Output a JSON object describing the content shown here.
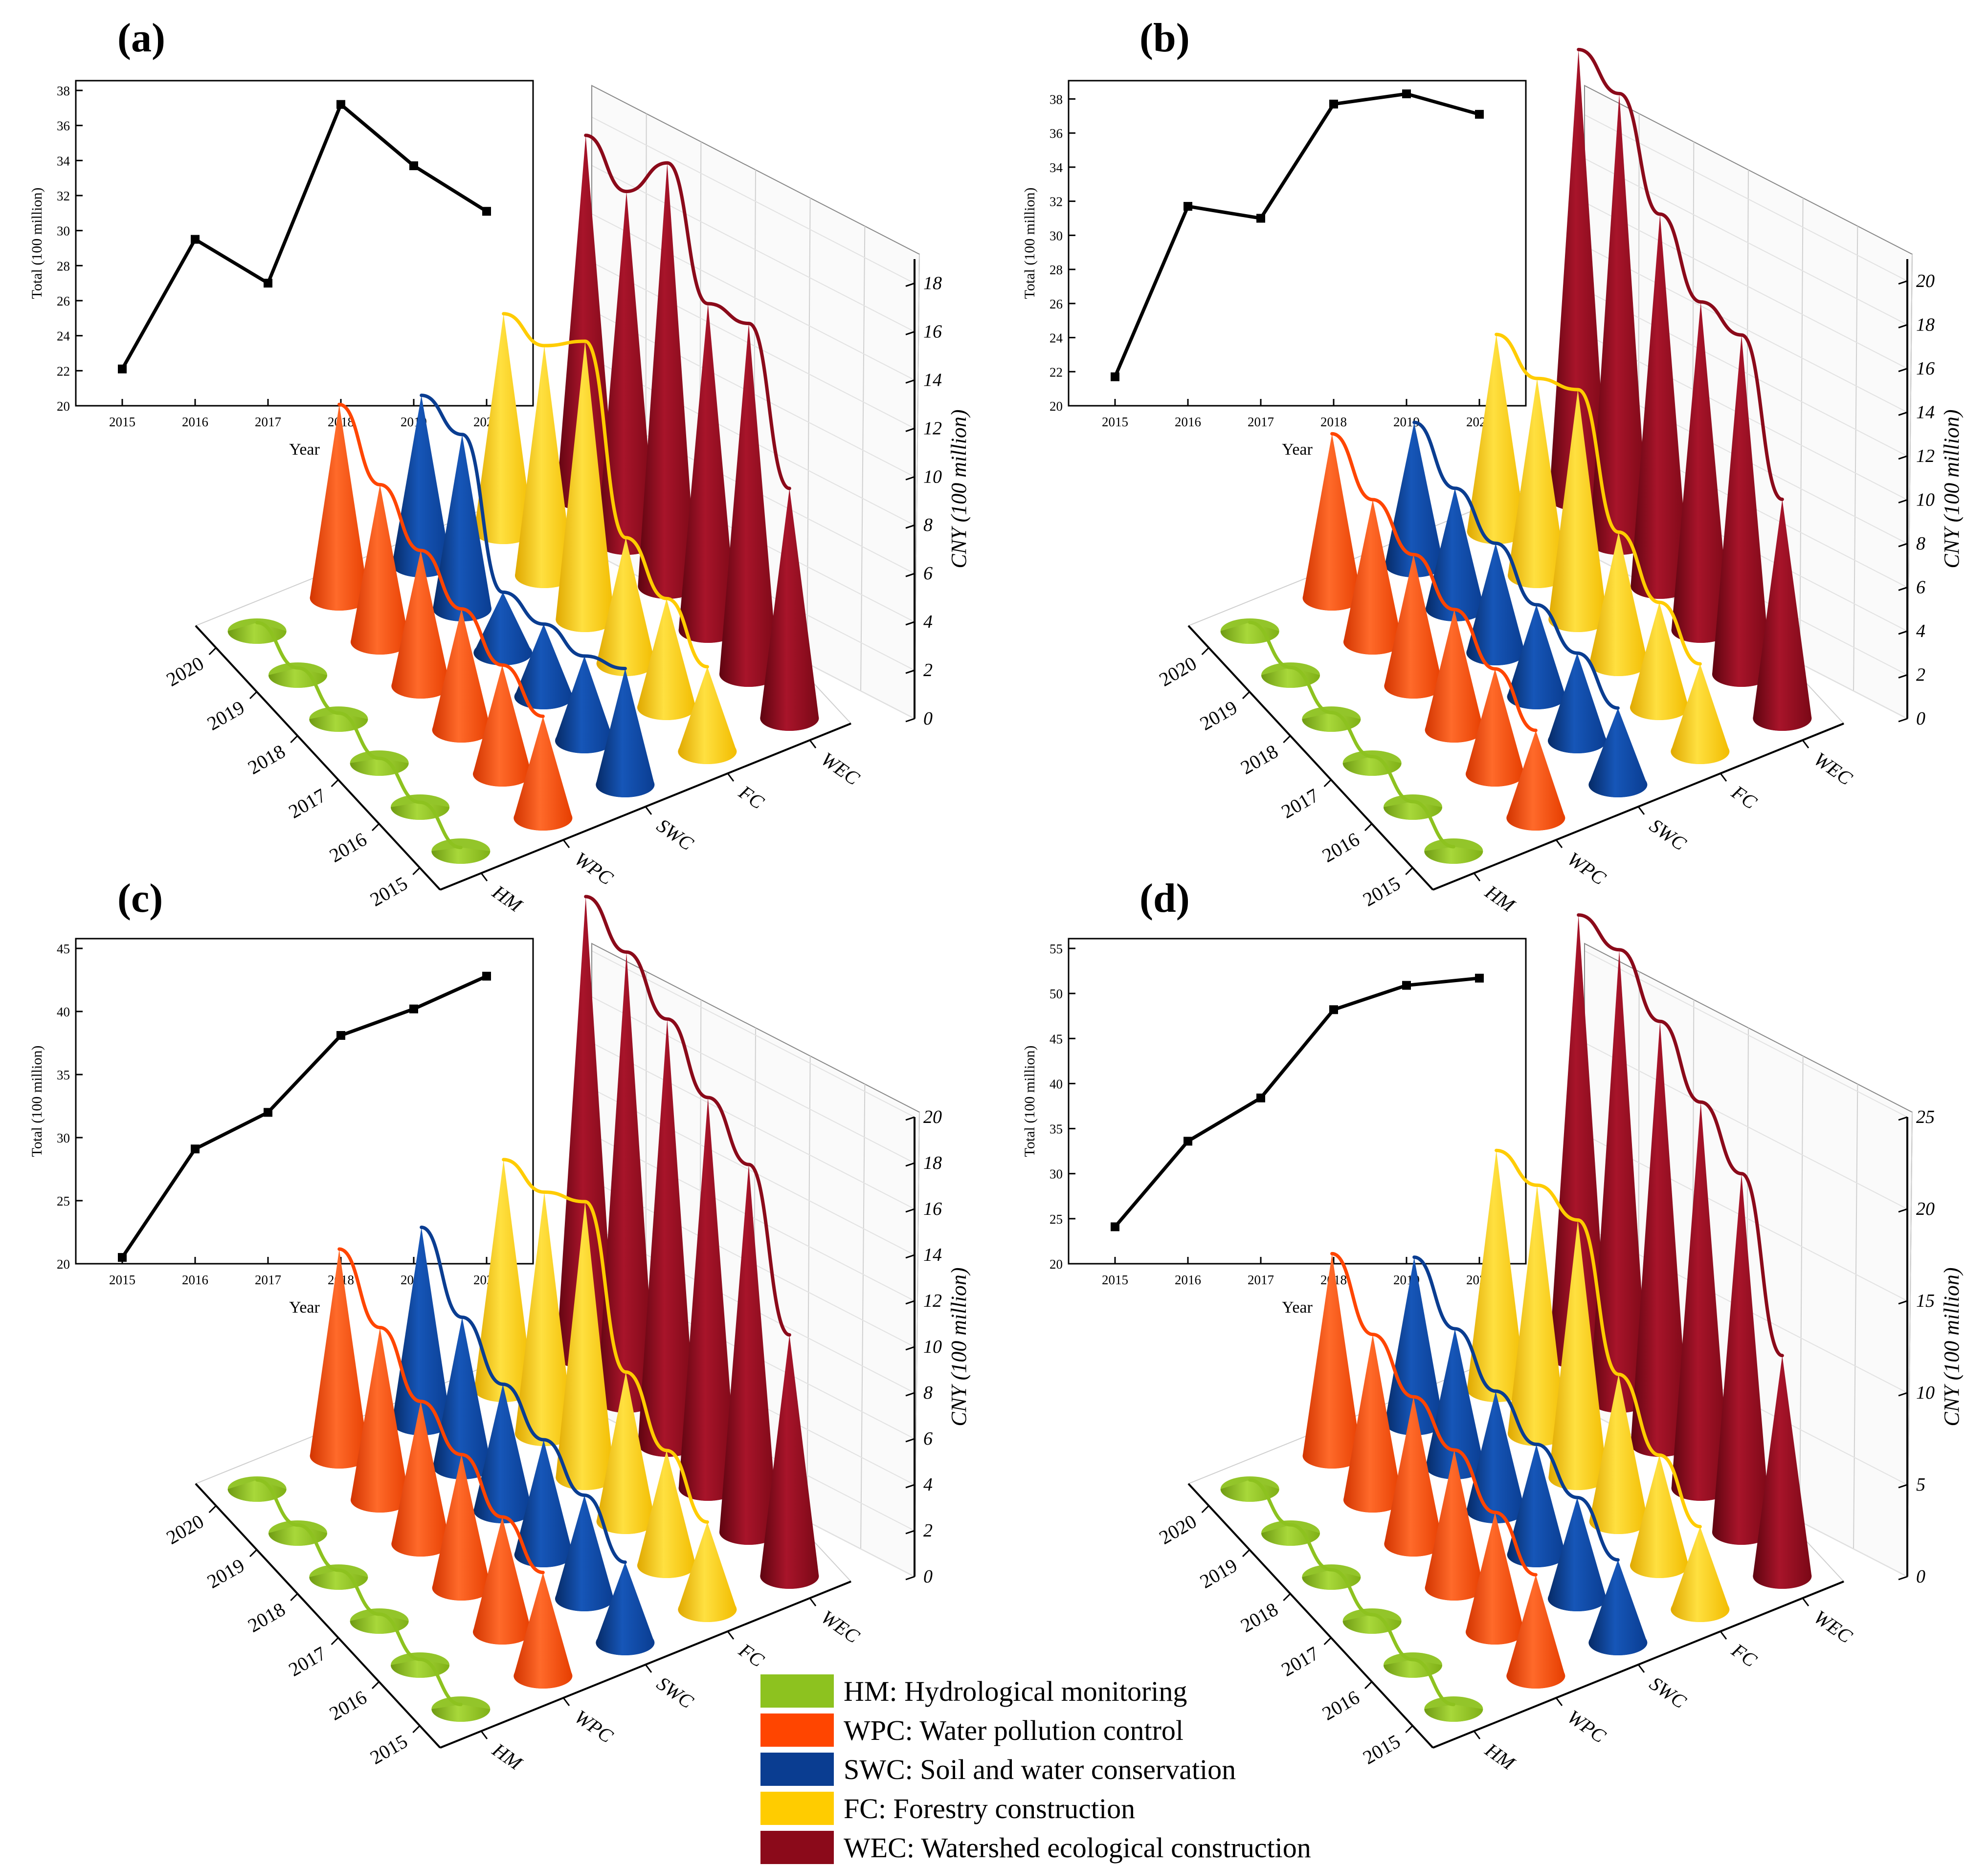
{
  "figure": {
    "legend": [
      {
        "key": "HM",
        "label": "HM: Hydrological monitoring",
        "color": "#8DC21F"
      },
      {
        "key": "WPC",
        "label": "WPC: Water pollution control",
        "color": "#FF4500"
      },
      {
        "key": "SWC",
        "label": "SWC: Soil and water conservation",
        "color": "#0A3D91"
      },
      {
        "key": "FC",
        "label": "FC: Forestry construction",
        "color": "#FFCC00"
      },
      {
        "key": "WEC",
        "label": "WEC: Watershed ecological construction",
        "color": "#8B0A1A"
      }
    ]
  },
  "chart_data": [
    {
      "panel": "(a)",
      "type": "line",
      "title": "",
      "x": [
        "2015",
        "2016",
        "2017",
        "2018",
        "2019",
        "2020"
      ],
      "y": [
        22.1,
        29.5,
        27.0,
        37.2,
        33.7,
        31.1
      ],
      "xlabel": "Year",
      "ylabel": "Total (100 million)",
      "ylim": [
        20,
        38
      ],
      "yticks": [
        "20",
        "22",
        "24",
        "26",
        "28",
        "30",
        "32",
        "34",
        "36",
        "38"
      ],
      "cone": {
        "type": "bar3d",
        "categories": [
          "HM",
          "WPC",
          "SWC",
          "FC",
          "WEC"
        ],
        "years": [
          "2015",
          "2016",
          "2017",
          "2018",
          "2019",
          "2020"
        ],
        "zlabel": "CNY (100 million)",
        "zlim": [
          0,
          19
        ],
        "zticks": [
          "0",
          "2",
          "4",
          "6",
          "8",
          "10",
          "12",
          "14",
          "16",
          "18"
        ],
        "series": [
          {
            "name": "HM",
            "values": [
              0.15,
              0.2,
              0.2,
              0.25,
              0.3,
              0.35
            ]
          },
          {
            "name": "WPC",
            "values": [
              4.2,
              4.5,
              5.0,
              5.6,
              6.5,
              8.0
            ]
          },
          {
            "name": "SWC",
            "values": [
              4.8,
              3.5,
              3.0,
              2.5,
              7.2,
              7.0
            ]
          },
          {
            "name": "FC",
            "values": [
              3.5,
              4.5,
              5.2,
              11.5,
              9.5,
              9.0
            ]
          },
          {
            "name": "WEC",
            "values": [
              9.5,
              14.5,
              13.5,
              17.5,
              14.5,
              15.0
            ]
          }
        ]
      }
    },
    {
      "panel": "(b)",
      "type": "line",
      "title": "",
      "x": [
        "2015",
        "2016",
        "2017",
        "2018",
        "2019",
        "2020"
      ],
      "y": [
        21.7,
        31.7,
        31.0,
        37.7,
        38.3,
        37.1
      ],
      "xlabel": "Year",
      "ylabel": "Total (100 million)",
      "ylim": [
        20,
        38.5
      ],
      "yticks": [
        "20",
        "22",
        "24",
        "26",
        "28",
        "30",
        "32",
        "34",
        "36",
        "38"
      ],
      "cone": {
        "type": "bar3d",
        "categories": [
          "HM",
          "WPC",
          "SWC",
          "FC",
          "WEC"
        ],
        "years": [
          "2015",
          "2016",
          "2017",
          "2018",
          "2019",
          "2020"
        ],
        "zlabel": "CNY (100 million)",
        "zlim": [
          0,
          21
        ],
        "zticks": [
          "0",
          "2",
          "4",
          "6",
          "8",
          "10",
          "12",
          "14",
          "16",
          "18",
          "20"
        ],
        "series": [
          {
            "name": "HM",
            "values": [
              0.2,
              0.25,
              0.3,
              0.3,
              0.35,
              0.4
            ]
          },
          {
            "name": "WPC",
            "values": [
              4.0,
              4.8,
              5.5,
              6.0,
              6.5,
              7.5
            ]
          },
          {
            "name": "SWC",
            "values": [
              3.5,
              4.0,
              4.2,
              5.0,
              5.5,
              6.5
            ]
          },
          {
            "name": "FC",
            "values": [
              4.0,
              4.8,
              6.0,
              10.5,
              9.0,
              9.0
            ]
          },
          {
            "name": "WEC",
            "values": [
              10.0,
              15.5,
              15.0,
              17.0,
              20.5,
              20.5
            ]
          }
        ]
      }
    },
    {
      "panel": "(c)",
      "type": "line",
      "title": "",
      "x": [
        "2015",
        "2016",
        "2017",
        "2018",
        "2019",
        "2020"
      ],
      "y": [
        20.5,
        29.1,
        32.0,
        38.1,
        40.2,
        42.8
      ],
      "xlabel": "Year",
      "ylabel": "Total (100 million)",
      "ylim": [
        20,
        45
      ],
      "yticks": [
        "20",
        "25",
        "30",
        "35",
        "40",
        "45"
      ],
      "cone": {
        "type": "bar3d",
        "categories": [
          "HM",
          "WPC",
          "SWC",
          "FC",
          "WEC"
        ],
        "years": [
          "2015",
          "2016",
          "2017",
          "2018",
          "2019",
          "2020"
        ],
        "zlabel": "CNY (100 million)",
        "zlim": [
          0,
          20
        ],
        "zticks": [
          "0",
          "2",
          "4",
          "6",
          "8",
          "10",
          "12",
          "14",
          "16",
          "18",
          "20"
        ],
        "series": [
          {
            "name": "HM",
            "values": [
              0.2,
              0.25,
              0.3,
              0.3,
              0.35,
              0.4
            ]
          },
          {
            "name": "WPC",
            "values": [
              4.5,
              5.0,
              5.8,
              6.2,
              7.5,
              9.0
            ]
          },
          {
            "name": "SWC",
            "values": [
              3.5,
              4.5,
              5.0,
              5.5,
              6.5,
              8.5
            ]
          },
          {
            "name": "FC",
            "values": [
              3.8,
              5.0,
              6.5,
              12.0,
              10.5,
              10.0
            ]
          },
          {
            "name": "WEC",
            "values": [
              10.5,
              16.0,
              17.0,
              18.5,
              19.5,
              20.0
            ]
          }
        ]
      }
    },
    {
      "panel": "(d)",
      "type": "line",
      "title": "",
      "x": [
        "2015",
        "2016",
        "2017",
        "2018",
        "2019",
        "2020"
      ],
      "y": [
        24.1,
        33.6,
        38.4,
        48.2,
        50.9,
        51.7
      ],
      "xlabel": "Year",
      "ylabel": "Total (100 million)",
      "ylim": [
        20,
        55
      ],
      "yticks": [
        "20",
        "25",
        "30",
        "35",
        "40",
        "45",
        "50",
        "55"
      ],
      "cone": {
        "type": "bar3d",
        "categories": [
          "HM",
          "WPC",
          "SWC",
          "FC",
          "WEC"
        ],
        "years": [
          "2015",
          "2016",
          "2017",
          "2018",
          "2019",
          "2020"
        ],
        "zlabel": "CNY (100 million)",
        "zlim": [
          0,
          25
        ],
        "zticks": [
          "0",
          "5",
          "10",
          "15",
          "20",
          "25"
        ],
        "series": [
          {
            "name": "HM",
            "values": [
              0.25,
              0.3,
              0.35,
              0.4,
              0.45,
              0.5
            ]
          },
          {
            "name": "WPC",
            "values": [
              5.5,
              6.5,
              7.5,
              8.0,
              9.0,
              11.0
            ]
          },
          {
            "name": "SWC",
            "values": [
              4.5,
              5.5,
              6.0,
              6.5,
              7.5,
              9.0
            ]
          },
          {
            "name": "FC",
            "values": [
              4.5,
              6.0,
              8.0,
              14.0,
              13.5,
              13.0
            ]
          },
          {
            "name": "WEC",
            "values": [
              12.0,
              19.5,
              21.0,
              23.0,
              24.5,
              24.0
            ]
          }
        ]
      }
    }
  ]
}
